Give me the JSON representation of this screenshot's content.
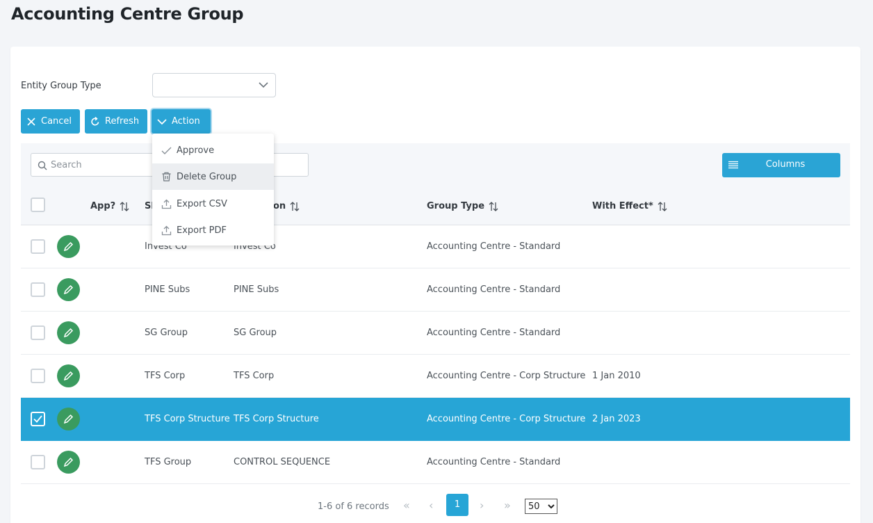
{
  "page": {
    "title": "Accounting Centre Group"
  },
  "filter": {
    "label": "Entity Group Type",
    "value": ""
  },
  "buttons": {
    "cancel": "Cancel",
    "refresh": "Refresh",
    "action": "Action",
    "columns": "Columns"
  },
  "action_menu": {
    "items": [
      {
        "label": "Approve",
        "icon": "check-icon"
      },
      {
        "label": "Delete Group",
        "icon": "trash-icon"
      },
      {
        "label": "Export CSV",
        "icon": "upload-icon"
      },
      {
        "label": "Export PDF",
        "icon": "upload-icon"
      }
    ],
    "hovered": "Delete Group"
  },
  "search": {
    "placeholder": "Search",
    "value": ""
  },
  "table": {
    "columns": [
      "App?",
      "Sh",
      "on",
      "Group Type",
      "With Effect*"
    ],
    "rows": [
      {
        "short": "Invest Co",
        "description": "Invest Co",
        "group_type": "Accounting Centre - Standard",
        "with_effect": "",
        "checked": false
      },
      {
        "short": "PINE Subs",
        "description": "PINE Subs",
        "group_type": "Accounting Centre - Standard",
        "with_effect": "",
        "checked": false
      },
      {
        "short": "SG Group",
        "description": "SG Group",
        "group_type": "Accounting Centre - Standard",
        "with_effect": "",
        "checked": false
      },
      {
        "short": "TFS Corp",
        "description": "TFS Corp",
        "group_type": "Accounting Centre - Corp Structure",
        "with_effect": "1 Jan 2010",
        "checked": false
      },
      {
        "short": "TFS Corp Structure",
        "description": "TFS Corp Structure",
        "group_type": "Accounting Centre - Corp Structure",
        "with_effect": "2 Jan 2023",
        "checked": true
      },
      {
        "short": "TFS Group",
        "description": "CONTROL SEQUENCE",
        "group_type": "Accounting Centre - Standard",
        "with_effect": "",
        "checked": false
      }
    ]
  },
  "pagination": {
    "info": "1-6 of 6 records",
    "current_page": "1",
    "page_size": "50",
    "first": "«",
    "prev": "‹",
    "next": "›",
    "last": "»"
  },
  "colors": {
    "primary": "#2aa4d5",
    "edit": "#3a9b5f",
    "selected_row": "#27a5d6"
  }
}
